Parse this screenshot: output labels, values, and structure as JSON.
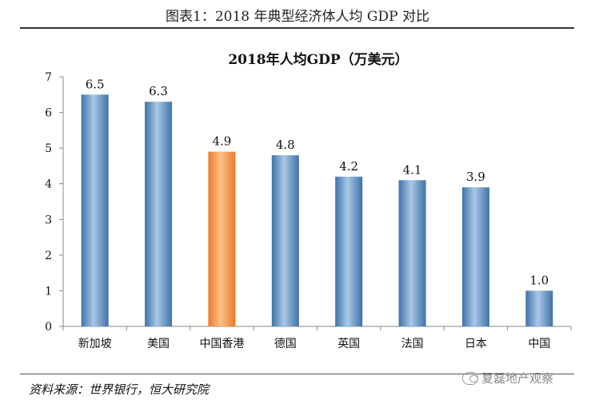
{
  "caption": "图表1：2018 年典型经济体人均 GDP 对比",
  "source": "资料来源：世界银行，恒大研究院",
  "watermark": "夏磊地产观察",
  "watermark_icon": "wechat-icon",
  "colors": {
    "bar": "#4f86bd",
    "bar_highlight": "#f39a4a",
    "axis": "#888888"
  },
  "chart_data": {
    "type": "bar",
    "title": "2018年人均GDP（万美元）",
    "categories": [
      "新加坡",
      "美国",
      "中国香港",
      "德国",
      "英国",
      "法国",
      "日本",
      "中国"
    ],
    "values": [
      6.5,
      6.3,
      4.9,
      4.8,
      4.2,
      4.1,
      3.9,
      1.0
    ],
    "value_labels": [
      "6.5",
      "6.3",
      "4.9",
      "4.8",
      "4.2",
      "4.1",
      "3.9",
      "1.0"
    ],
    "highlight_category": "中国香港",
    "ylim": [
      0,
      7
    ],
    "yticks": [
      "0",
      "1",
      "2",
      "3",
      "4",
      "5",
      "6",
      "7"
    ],
    "grid": false,
    "xlabel": "",
    "ylabel": ""
  }
}
